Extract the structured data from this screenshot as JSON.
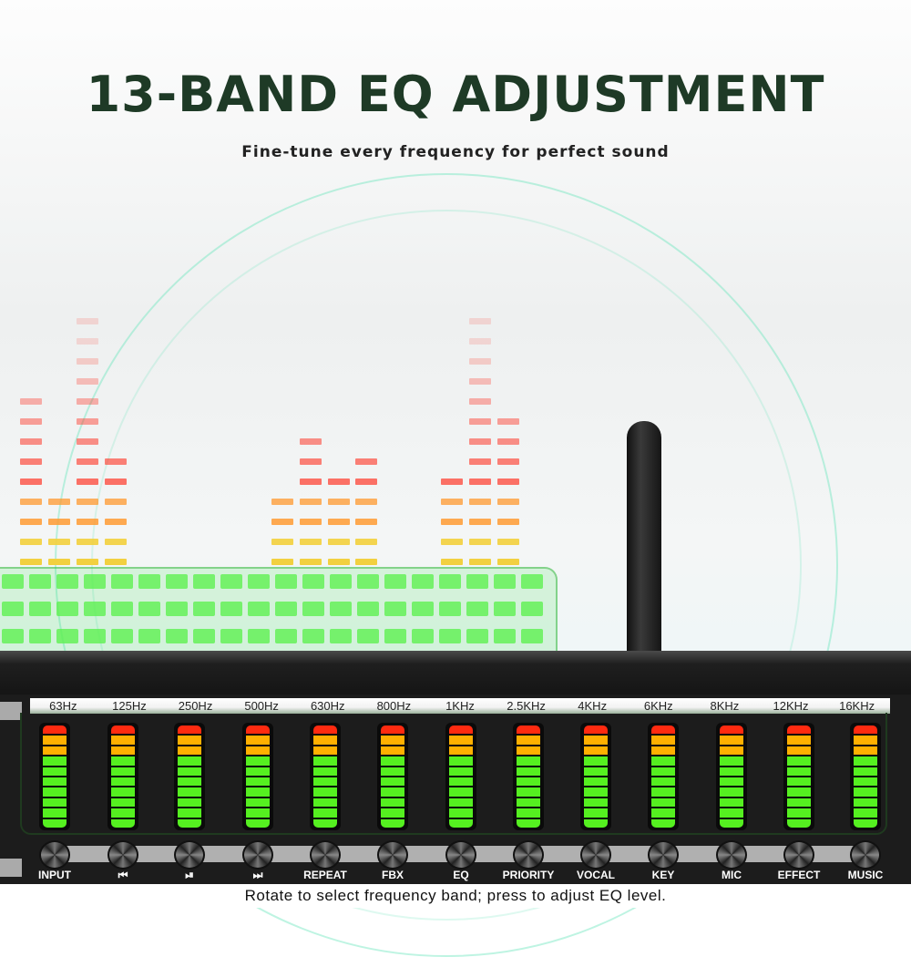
{
  "heading": {
    "title": "13-BAND EQ ADJUSTMENT",
    "subtitle": "Fine-tune every frequency for perfect sound"
  },
  "bands": [
    {
      "freq": "63Hz",
      "button": "INPUT"
    },
    {
      "freq": "125Hz",
      "button": "⏮",
      "icon": "previous-icon"
    },
    {
      "freq": "250Hz",
      "button": "⏯",
      "icon": "play-pause-icon"
    },
    {
      "freq": "500Hz",
      "button": "⏭",
      "icon": "next-icon"
    },
    {
      "freq": "630Hz",
      "button": "REPEAT"
    },
    {
      "freq": "800Hz",
      "button": "FBX"
    },
    {
      "freq": "1KHz",
      "button": "EQ"
    },
    {
      "freq": "2.5KHz",
      "button": "PRIORITY"
    },
    {
      "freq": "4KHz",
      "button": "VOCAL"
    },
    {
      "freq": "6KHz",
      "button": "KEY"
    },
    {
      "freq": "8KHz",
      "button": "MIC"
    },
    {
      "freq": "12KHz",
      "button": "EFFECT"
    },
    {
      "freq": "16KHz",
      "button": "MUSIC"
    }
  ],
  "meter_segments": {
    "red": 1,
    "orange": 2,
    "green": 7
  },
  "colors": {
    "red": "#ff2a10",
    "orange": "#ffb000",
    "green": "#55f020",
    "title": "#1e3a26"
  },
  "caption": "Rotate to select frequency band; press to adjust EQ level."
}
